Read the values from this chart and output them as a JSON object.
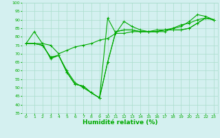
{
  "title": "",
  "xlabel": "Humidité relative (%)",
  "ylabel": "",
  "background_color": "#d4f0f0",
  "grid_color": "#aaddcc",
  "line_color": "#00aa00",
  "xlim": [
    -0.5,
    23.5
  ],
  "ylim": [
    35,
    100
  ],
  "yticks": [
    35,
    40,
    45,
    50,
    55,
    60,
    65,
    70,
    75,
    80,
    85,
    90,
    95,
    100
  ],
  "xticks": [
    0,
    1,
    2,
    3,
    4,
    5,
    6,
    7,
    8,
    9,
    10,
    11,
    12,
    13,
    14,
    15,
    16,
    17,
    18,
    19,
    20,
    21,
    22,
    23
  ],
  "series": [
    [
      76,
      83,
      76,
      67,
      69,
      60,
      53,
      50,
      47,
      44,
      91,
      82,
      89,
      86,
      84,
      83,
      83,
      83,
      85,
      86,
      89,
      93,
      92,
      90
    ],
    [
      76,
      76,
      76,
      75,
      70,
      72,
      74,
      75,
      76,
      78,
      79,
      82,
      82,
      83,
      83,
      83,
      84,
      84,
      85,
      87,
      88,
      90,
      91,
      90
    ],
    [
      76,
      76,
      75,
      68,
      69,
      59,
      52,
      51,
      47,
      44,
      65,
      83,
      84,
      84,
      83,
      83,
      83,
      84,
      84,
      84,
      85,
      88,
      91,
      90
    ],
    [
      76,
      76,
      75,
      68,
      69,
      59,
      52,
      51,
      47,
      44,
      65,
      83,
      84,
      84,
      83,
      83,
      83,
      84,
      84,
      84,
      85,
      88,
      91,
      90
    ]
  ],
  "marker_size": 2.5,
  "linewidth": 0.8,
  "tick_fontsize": 4.5,
  "xlabel_fontsize": 6.5
}
